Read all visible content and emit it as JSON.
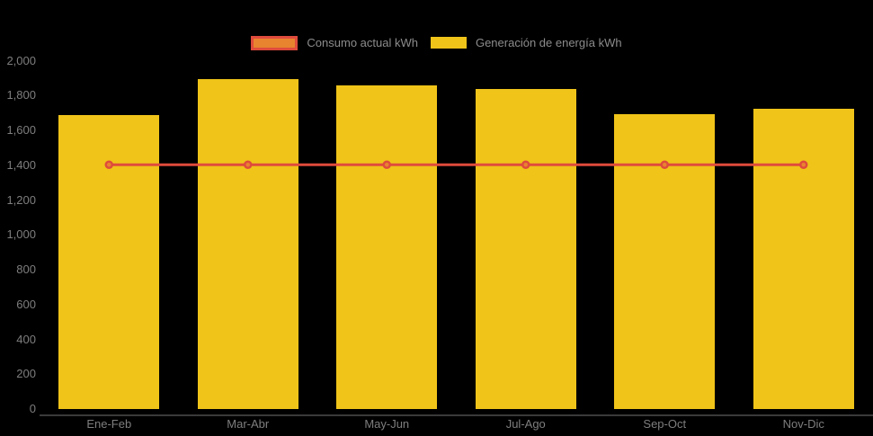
{
  "chart_data": {
    "type": "bar",
    "title": "",
    "categories": [
      "Ene-Feb",
      "Mar-Abr",
      "May-Jun",
      "Jul-Ago",
      "Sep-Oct",
      "Nov-Dic"
    ],
    "series": [
      {
        "name": "Consumo actual kWh",
        "type": "line",
        "values": [
          1400,
          1400,
          1400,
          1400,
          1400,
          1400
        ],
        "color": "#DF4B3C",
        "marker_color": "#E8842F"
      },
      {
        "name": "Generación de energía kWh",
        "type": "bar",
        "values": [
          1685,
          1890,
          1855,
          1835,
          1690,
          1720
        ],
        "color": "#F0C419"
      }
    ],
    "xlabel": "",
    "ylabel": "",
    "ylim": [
      0,
      2000
    ],
    "y_tick_step": 200,
    "y_tick_labels": [
      "0",
      "200",
      "400",
      "600",
      "800",
      "1,000",
      "1,200",
      "1,400",
      "1,600",
      "1,800",
      "2,000"
    ],
    "grid": false,
    "legend_position": "top-center",
    "background_color": "#000000",
    "axis_text_color": "#7e7e7e",
    "legend_text_color": "#8c8c8c",
    "axis_line_color": "#3a3a3a"
  }
}
